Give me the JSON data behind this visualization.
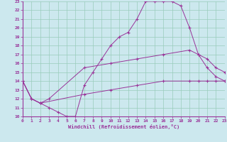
{
  "xlabel": "Windchill (Refroidissement éolien,°C)",
  "bg_color": "#cce8ee",
  "grid_color": "#99ccbb",
  "line_color": "#993399",
  "axis_color": "#993399",
  "xmin": 0,
  "xmax": 23,
  "ymin": 10,
  "ymax": 23,
  "series1": [
    [
      0,
      14
    ],
    [
      1,
      12
    ],
    [
      2,
      11.5
    ],
    [
      3,
      11
    ],
    [
      4,
      10.5
    ],
    [
      5,
      10
    ],
    [
      6,
      10
    ],
    [
      7,
      13.5
    ],
    [
      8,
      15
    ],
    [
      9,
      16.5
    ],
    [
      10,
      18
    ],
    [
      11,
      19
    ],
    [
      12,
      19.5
    ],
    [
      13,
      21
    ],
    [
      14,
      23
    ],
    [
      15,
      23
    ],
    [
      16,
      23
    ],
    [
      17,
      23
    ],
    [
      18,
      22.5
    ],
    [
      19,
      20
    ],
    [
      20,
      17
    ],
    [
      21,
      15.5
    ],
    [
      22,
      14.5
    ],
    [
      23,
      14
    ]
  ],
  "series2": [
    [
      0,
      14
    ],
    [
      1,
      12
    ],
    [
      2,
      11.5
    ],
    [
      3,
      12
    ],
    [
      7,
      15.5
    ],
    [
      10,
      16
    ],
    [
      13,
      16.5
    ],
    [
      16,
      17
    ],
    [
      19,
      17.5
    ],
    [
      20,
      17
    ],
    [
      21,
      16.5
    ],
    [
      22,
      15.5
    ],
    [
      23,
      15
    ]
  ],
  "series3": [
    [
      0,
      14
    ],
    [
      1,
      12
    ],
    [
      2,
      11.5
    ],
    [
      7,
      12.5
    ],
    [
      10,
      13
    ],
    [
      13,
      13.5
    ],
    [
      16,
      14
    ],
    [
      19,
      14
    ],
    [
      20,
      14
    ],
    [
      21,
      14
    ],
    [
      22,
      14
    ],
    [
      23,
      14
    ]
  ]
}
